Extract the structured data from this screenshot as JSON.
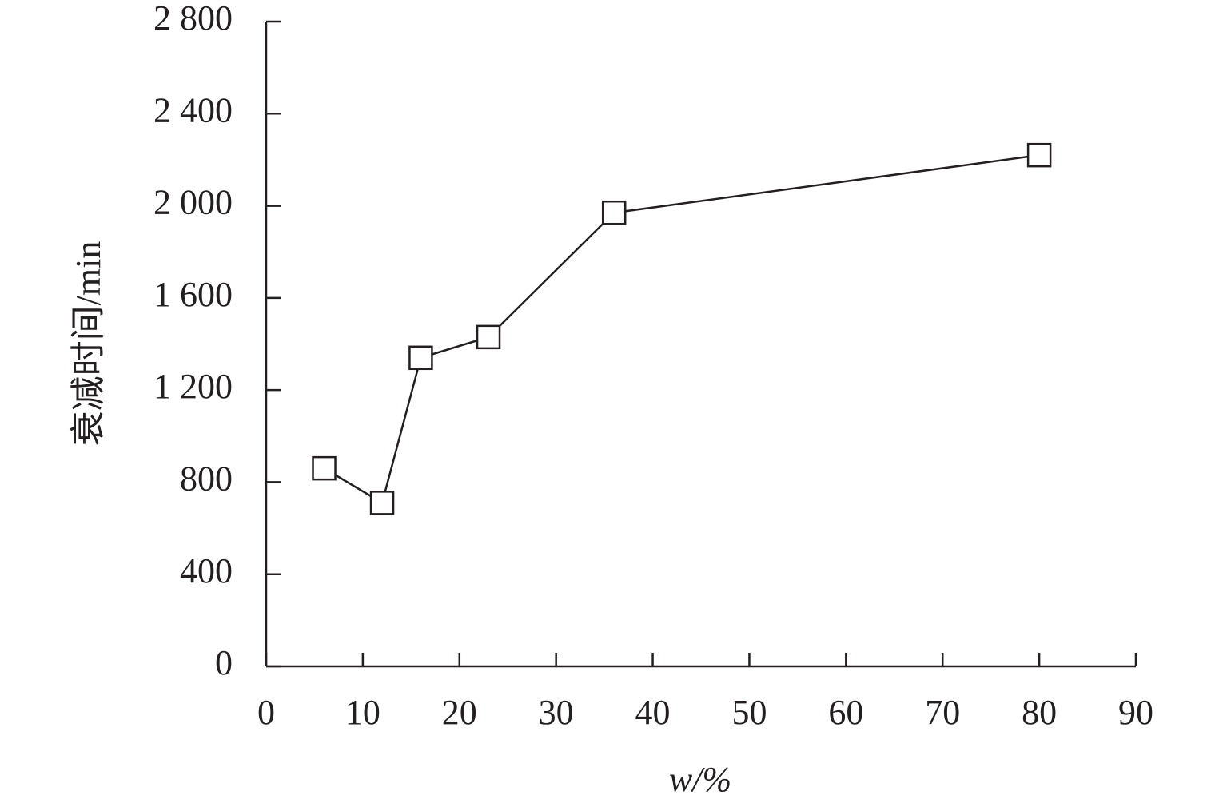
{
  "chart_data": {
    "type": "line",
    "x_label": "w/%",
    "y_label": "衰减时间/min",
    "x": [
      6,
      12,
      16,
      23,
      36,
      80
    ],
    "series": [
      {
        "color": "#231f20",
        "values": [
          860,
          710,
          1340,
          1430,
          1970,
          2220
        ]
      }
    ],
    "xlim": [
      0,
      90
    ],
    "xticks": [
      0,
      10,
      20,
      30,
      40,
      50,
      60,
      70,
      80,
      90
    ],
    "ylim": [
      0,
      2800
    ],
    "yticks": [
      0,
      400,
      800,
      {
        "value": 1200,
        "label": "1 200"
      },
      {
        "value": 1600,
        "label": "1 600"
      },
      {
        "value": 2000,
        "label": "2 000"
      },
      {
        "value": 2400,
        "label": "2 400"
      },
      {
        "value": 2800,
        "label": "2 800"
      }
    ],
    "grid": false,
    "marker": "square"
  }
}
